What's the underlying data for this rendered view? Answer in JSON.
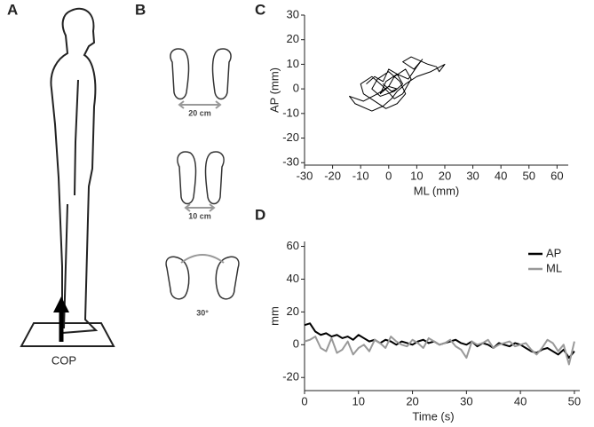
{
  "panels": [
    "A",
    "B",
    "C",
    "D"
  ],
  "illustration": {
    "platform_label": "COP",
    "stances": [
      "20 cm",
      "10 cm",
      "30°"
    ]
  },
  "chart_data": [
    {
      "type": "line",
      "xlabel": "ML (mm)",
      "ylabel": "AP (mm)",
      "xlim": [
        -30,
        64
      ],
      "ylim": [
        -31,
        30
      ],
      "xticks": [
        -30,
        -20,
        -10,
        0,
        10,
        20,
        30,
        40,
        50,
        60
      ],
      "yticks": [
        -30,
        -20,
        -10,
        0,
        10,
        20,
        30
      ],
      "color": "#000000",
      "x": [
        -8,
        -5,
        -2,
        0,
        3,
        5,
        2,
        -3,
        -6,
        -4,
        0,
        4,
        6,
        3,
        -1,
        -5,
        -9,
        -10,
        -6,
        -2,
        2,
        5,
        8,
        6,
        2,
        0,
        -3,
        -1,
        3,
        7,
        10,
        12,
        9,
        5,
        8,
        14,
        17,
        18,
        20,
        15,
        10,
        6,
        3,
        1,
        -2,
        -6,
        -12,
        -14,
        -9,
        -4,
        0,
        3,
        1,
        -2,
        0
      ],
      "values": [
        2,
        5,
        3,
        8,
        6,
        2,
        -1,
        -3,
        0,
        4,
        7,
        3,
        -2,
        -6,
        -8,
        -5,
        -2,
        2,
        5,
        1,
        -4,
        -2,
        4,
        8,
        5,
        1,
        -2,
        3,
        6,
        4,
        9,
        12,
        8,
        11,
        13,
        10,
        9,
        7,
        10,
        7,
        5,
        2,
        -1,
        -4,
        -7,
        -9,
        -6,
        -3,
        -5,
        -2,
        1,
        0,
        -1,
        2,
        0
      ]
    },
    {
      "type": "line",
      "xlabel": "Time (s)",
      "ylabel": "mm",
      "xlim": [
        0,
        51
      ],
      "ylim": [
        -28,
        63
      ],
      "xticks": [
        0,
        10,
        20,
        30,
        40,
        50
      ],
      "yticks": [
        -20,
        0,
        20,
        40,
        60
      ],
      "legend": "upper right",
      "x": [
        0,
        1,
        2,
        3,
        4,
        5,
        6,
        7,
        8,
        9,
        10,
        11,
        12,
        13,
        14,
        15,
        16,
        17,
        18,
        19,
        20,
        21,
        22,
        23,
        24,
        25,
        26,
        27,
        28,
        29,
        30,
        31,
        32,
        33,
        34,
        35,
        36,
        37,
        38,
        39,
        40,
        41,
        42,
        43,
        44,
        45,
        46,
        47,
        48,
        49,
        50
      ],
      "series": [
        {
          "name": "AP",
          "color": "#000000",
          "values": [
            12,
            13,
            8,
            6,
            7,
            5,
            6,
            4,
            5,
            3,
            6,
            4,
            2,
            3,
            1,
            3,
            2,
            0,
            2,
            1,
            0,
            2,
            3,
            1,
            2,
            0,
            1,
            2,
            3,
            1,
            0,
            2,
            -1,
            1,
            0,
            -2,
            1,
            0,
            -1,
            1,
            0,
            -2,
            -4,
            -5,
            -3,
            -2,
            -4,
            -6,
            -3,
            -8,
            -4
          ]
        },
        {
          "name": "ML",
          "color": "#999999",
          "values": [
            2,
            3,
            5,
            -2,
            -4,
            4,
            -5,
            -3,
            2,
            -6,
            -2,
            0,
            -4,
            3,
            1,
            -2,
            5,
            2,
            0,
            -1,
            3,
            1,
            -2,
            4,
            2,
            0,
            1,
            3,
            -1,
            -3,
            -8,
            2,
            0,
            1,
            3,
            -2,
            0,
            1,
            2,
            -1,
            0,
            1,
            -3,
            -6,
            -2,
            3,
            1,
            -4,
            0,
            -12,
            2
          ]
        }
      ]
    }
  ]
}
